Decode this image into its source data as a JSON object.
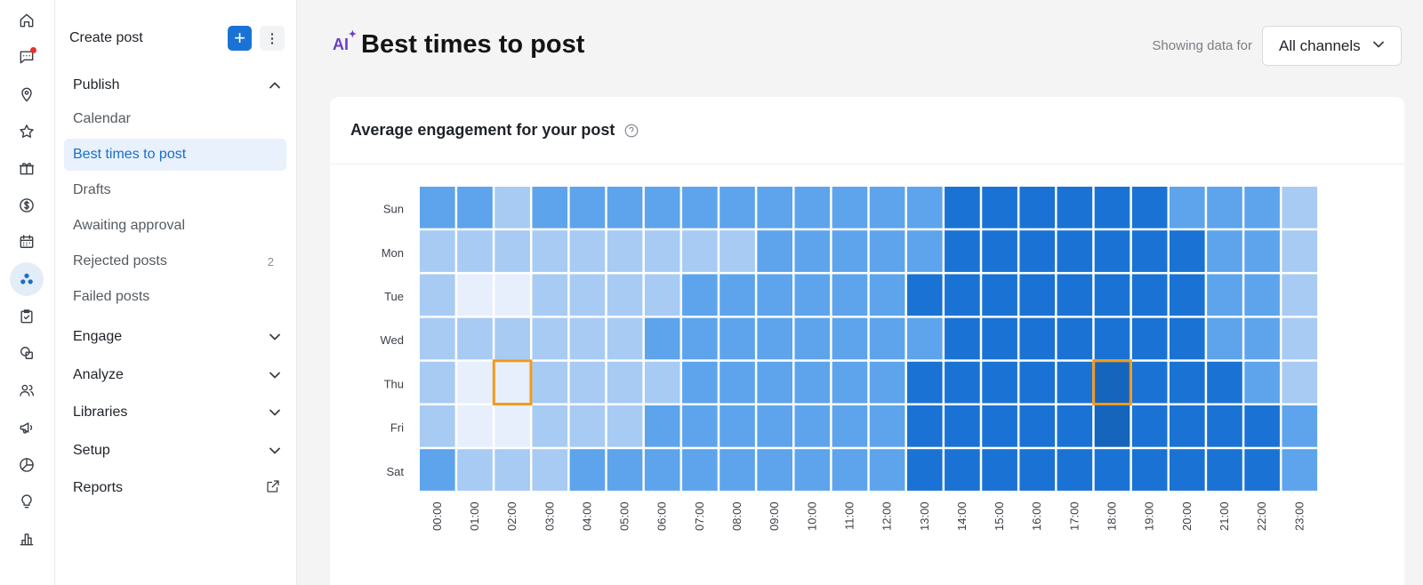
{
  "rail": {
    "icons": [
      "home-icon",
      "messages-icon",
      "location-icon",
      "star-icon",
      "gift-icon",
      "dollar-icon",
      "calendar-icon",
      "publish-icon",
      "tasks-icon",
      "shapes-icon",
      "people-icon",
      "megaphone-icon",
      "pie-chart-icon",
      "lightbulb-icon",
      "bar-chart-icon"
    ],
    "active": "publish-icon",
    "notification_on": "messages-icon",
    "notification_color": "#e5322d"
  },
  "sidebar": {
    "create_label": "Create post",
    "plus_label": "+",
    "more_label": "⋮",
    "publish": {
      "label": "Publish",
      "items": [
        {
          "label": "Calendar",
          "count": ""
        },
        {
          "label": "Best times to post",
          "count": ""
        },
        {
          "label": "Drafts",
          "count": ""
        },
        {
          "label": "Awaiting approval",
          "count": ""
        },
        {
          "label": "Rejected posts",
          "count": "2"
        },
        {
          "label": "Failed posts",
          "count": ""
        }
      ]
    },
    "sections": [
      "Engage",
      "Analyze",
      "Libraries",
      "Setup"
    ],
    "reports_label": "Reports"
  },
  "header": {
    "ai_badge": "AI",
    "title": "Best times to post",
    "filter_label": "Showing data for",
    "filter_value": "All channels"
  },
  "card": {
    "title": "Average engagement for your post"
  },
  "colors": {
    "accent": "#1a73d4",
    "active_bg": "#e8f1fc",
    "highlight_border": "#f29a1b",
    "heat_levels": [
      "#e6effb",
      "#a8cbf4",
      "#5ea4ec",
      "#1a73d4",
      "#1565bc"
    ]
  },
  "chart_data": {
    "type": "heatmap",
    "title": "Average engagement for your post",
    "x": [
      "00:00",
      "01:00",
      "02:00",
      "03:00",
      "04:00",
      "05:00",
      "06:00",
      "07:00",
      "08:00",
      "09:00",
      "10:00",
      "11:00",
      "12:00",
      "13:00",
      "14:00",
      "15:00",
      "16:00",
      "17:00",
      "18:00",
      "19:00",
      "20:00",
      "21:00",
      "22:00",
      "23:00"
    ],
    "y": [
      "Sun",
      "Mon",
      "Tue",
      "Wed",
      "Thu",
      "Fri",
      "Sat"
    ],
    "levels": [
      [
        2,
        2,
        1,
        2,
        2,
        2,
        2,
        2,
        2,
        2,
        2,
        2,
        2,
        2,
        3,
        3,
        3,
        3,
        3,
        3,
        2,
        2,
        2,
        1
      ],
      [
        1,
        1,
        1,
        1,
        1,
        1,
        1,
        1,
        1,
        2,
        2,
        2,
        2,
        2,
        3,
        3,
        3,
        3,
        3,
        3,
        3,
        2,
        2,
        1
      ],
      [
        1,
        0,
        0,
        1,
        1,
        1,
        1,
        2,
        2,
        2,
        2,
        2,
        2,
        3,
        3,
        3,
        3,
        3,
        3,
        3,
        3,
        2,
        2,
        1
      ],
      [
        1,
        1,
        1,
        1,
        1,
        1,
        2,
        2,
        2,
        2,
        2,
        2,
        2,
        2,
        3,
        3,
        3,
        3,
        3,
        3,
        3,
        2,
        2,
        1
      ],
      [
        1,
        0,
        0,
        1,
        1,
        1,
        1,
        2,
        2,
        2,
        2,
        2,
        2,
        3,
        3,
        3,
        3,
        3,
        4,
        3,
        3,
        3,
        2,
        1
      ],
      [
        1,
        0,
        0,
        1,
        1,
        1,
        2,
        2,
        2,
        2,
        2,
        2,
        2,
        3,
        3,
        3,
        3,
        3,
        4,
        3,
        3,
        3,
        3,
        2
      ],
      [
        2,
        1,
        1,
        1,
        2,
        2,
        2,
        2,
        2,
        2,
        2,
        2,
        2,
        3,
        3,
        3,
        3,
        3,
        3,
        3,
        3,
        3,
        3,
        2
      ]
    ],
    "highlighted_cells": [
      {
        "day": "Thu",
        "hour": "02:00",
        "meaning": "lowest"
      },
      {
        "day": "Thu",
        "hour": "18:00",
        "meaning": "highest"
      }
    ],
    "xlabel": "",
    "ylabel": ""
  }
}
